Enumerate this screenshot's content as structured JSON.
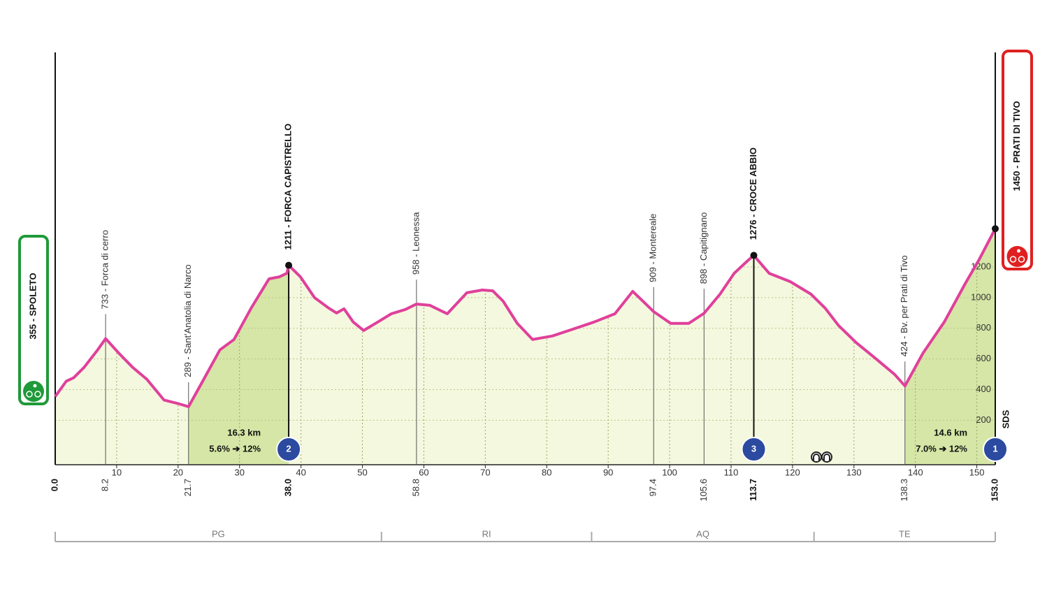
{
  "chart_data": {
    "type": "profile",
    "profile": {
      "color": "#e0409b",
      "x": [
        0,
        1.8,
        3.0,
        4.7,
        6.9,
        8.2,
        10.4,
        12.6,
        14.9,
        17.7,
        20.0,
        21.7,
        24.0,
        26.8,
        29.1,
        31.9,
        34.8,
        36.5,
        37.7,
        38.0,
        39.9,
        42.2,
        44.5,
        45.8,
        47.0,
        48.5,
        50.2,
        52.5,
        54.7,
        57.0,
        58.8,
        61.0,
        63.8,
        67.0,
        69.5,
        71.2,
        72.9,
        75.2,
        77.7,
        80.9,
        84.3,
        87.7,
        91.1,
        94.0,
        96.8,
        97.4,
        100.2,
        103.1,
        105.6,
        108.2,
        110.5,
        112.7,
        113.7,
        116.2,
        119.6,
        123.0,
        125.3,
        127.5,
        130.4,
        133.2,
        136.6,
        138.3,
        141.2,
        144.7,
        148.1,
        150.4,
        153.0
      ],
      "y": [
        355,
        455,
        477,
        545,
        659,
        733,
        636,
        545,
        468,
        332,
        309,
        289,
        455,
        659,
        727,
        932,
        1123,
        1136,
        1159,
        1211,
        1136,
        1000,
        932,
        900,
        927,
        841,
        786,
        841,
        895,
        923,
        958,
        950,
        895,
        1032,
        1050,
        1045,
        977,
        832,
        727,
        750,
        795,
        841,
        895,
        1041,
        932,
        909,
        832,
        832,
        898,
        1023,
        1159,
        1241,
        1276,
        1159,
        1105,
        1023,
        932,
        818,
        705,
        614,
        500,
        424,
        636,
        841,
        1091,
        1250,
        1450
      ]
    },
    "xlim": [
      0,
      153
    ],
    "ylim": [
      -90,
      2600
    ],
    "xticks": [
      10,
      20,
      30,
      40,
      50,
      60,
      70,
      80,
      90,
      100,
      110,
      120,
      130,
      140,
      150
    ],
    "yticks": [
      200,
      400,
      600,
      800,
      1000,
      1200
    ],
    "grid": true,
    "start": {
      "label": "355 - SPOLETO",
      "km": {
        "value": 0,
        "label": "0.0"
      },
      "color": "#1f9a3a"
    },
    "finish": {
      "label": "1450 - PRATI DI TIVO",
      "km": {
        "value": 153,
        "label": "153.0"
      },
      "color": "#e02020"
    },
    "waypoints": [
      {
        "km": 8.2,
        "label": "733 - Forca di cerro"
      },
      {
        "km": 21.7,
        "label": "289 - Sant'Anatolia di Narco"
      },
      {
        "km": {
          "value": 38,
          "label": "38.0"
        },
        "label": "1211 - FORCA CAPISTRELLO",
        "summit": true
      },
      {
        "km": 58.8,
        "label": "958 - Leonessa"
      },
      {
        "km": 97.4,
        "label": "909 - Montereale"
      },
      {
        "km": 105.6,
        "label": "898 - Capitignano"
      },
      {
        "km": 113.7,
        "label": "1276 - CROCE ABBIO",
        "summit": true
      },
      {
        "km": 138.3,
        "label": "424 - Bv. per Prati di Tivo"
      }
    ],
    "climbs": [
      {
        "start": 21.7,
        "summit": 38,
        "category": 2,
        "length": "16.3 km",
        "gradient": "5.6% ➔ 12%"
      },
      {
        "summit": 113.7,
        "category": 3
      },
      {
        "start": 138.3,
        "summit": 153,
        "category": 1,
        "length": "14.6 km",
        "gradient": "7.0% ➔ 12%"
      }
    ],
    "regions": [
      {
        "name": "PG",
        "start": 0,
        "end": 53.1
      },
      {
        "name": "RI",
        "start": 53.1,
        "end": 87.3
      },
      {
        "name": "AQ",
        "start": 87.3,
        "end": 123.5
      },
      {
        "name": "TE",
        "start": 123.5,
        "end": 153
      }
    ],
    "logo": "SDS"
  }
}
